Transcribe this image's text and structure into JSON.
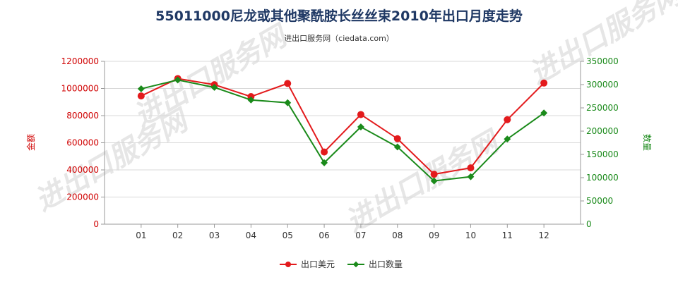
{
  "chart_data": {
    "type": "line",
    "title": "55011000尼龙或其他聚酰胺长丝丝束2010年出口月度走势",
    "subtitle": "进出口服务网（ciedata.com）",
    "categories": [
      "01",
      "02",
      "03",
      "04",
      "05",
      "06",
      "07",
      "08",
      "09",
      "10",
      "11",
      "12"
    ],
    "y_left": {
      "label": "金额",
      "range": [
        0,
        1200000
      ],
      "ticks": [
        "0",
        "200000",
        "400000",
        "600000",
        "800000",
        "1000000",
        "1200000"
      ],
      "color": "#e31a1c"
    },
    "y_right": {
      "label": "数量",
      "range": [
        0,
        350000
      ],
      "ticks": [
        "0",
        "50000",
        "100000",
        "150000",
        "200000",
        "250000",
        "300000",
        "350000"
      ],
      "color": "#1a8a1a"
    },
    "series": [
      {
        "name": "出口美元",
        "axis": "left",
        "color": "#e31a1c",
        "values": [
          945000,
          1073000,
          1028000,
          940000,
          1037000,
          532000,
          808000,
          630000,
          368000,
          415000,
          770000,
          1040000
        ]
      },
      {
        "name": "出口数量",
        "axis": "right",
        "color": "#1a8a1a",
        "values": [
          291000,
          310000,
          294000,
          267000,
          261000,
          132000,
          209000,
          166000,
          93000,
          102000,
          183000,
          239000
        ]
      }
    ],
    "grid": "horizontal",
    "legend": "bottom-center",
    "watermark": "进出口服务网"
  }
}
